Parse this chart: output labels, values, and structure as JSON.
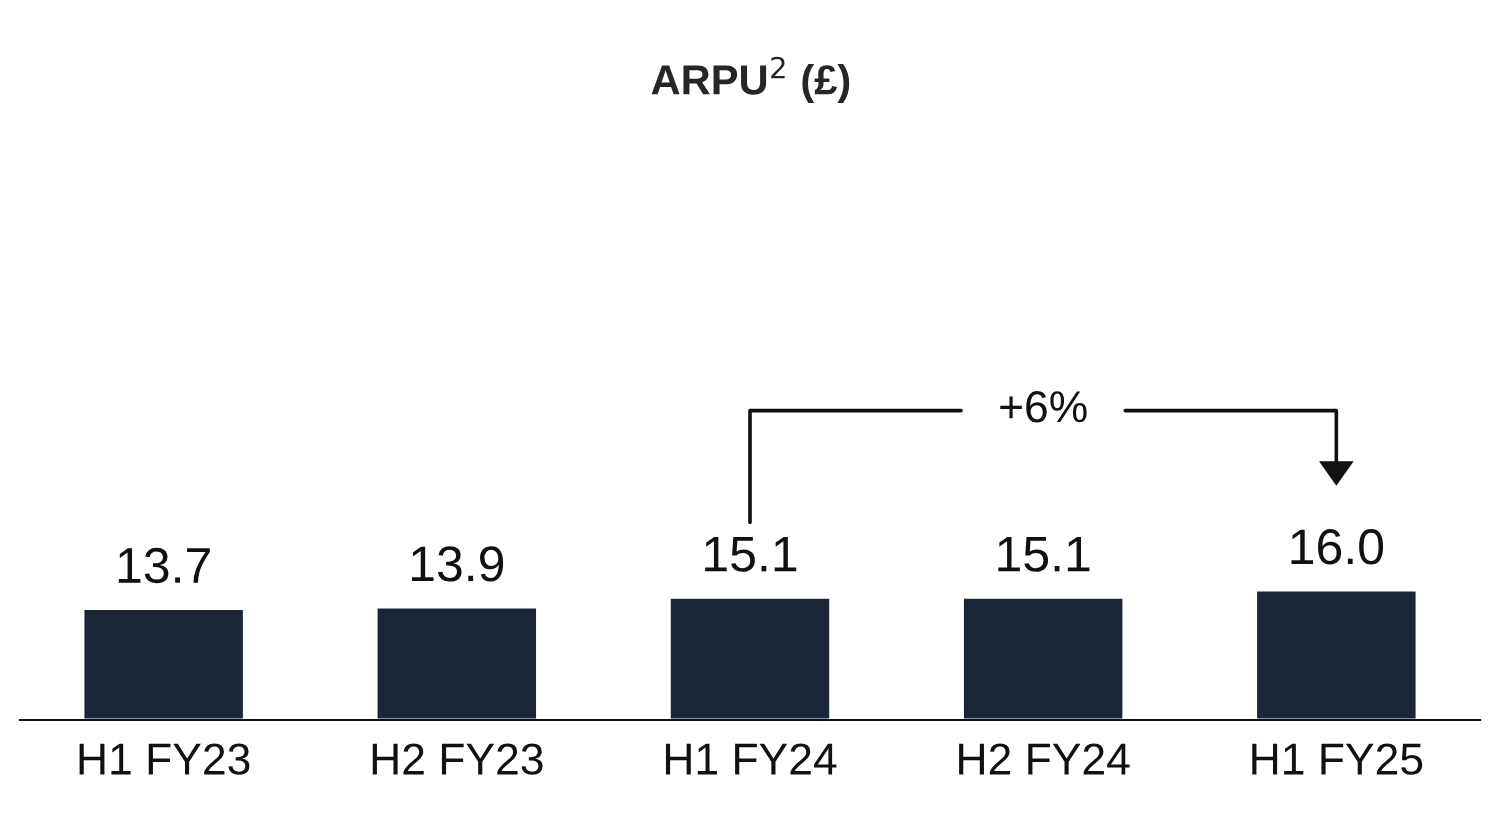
{
  "chart_data": {
    "type": "bar",
    "title": "ARPU$^{2}$ (£)",
    "categories": [
      "H1 FY23",
      "H2 FY23",
      "H1 FY24",
      "H2 FY24",
      "H1 FY25"
    ],
    "values": [
      13.7,
      13.9,
      15.1,
      15.1,
      16.0
    ],
    "color": "#1b2538",
    "value_labels": [
      "13.7",
      "13.9",
      "15.1",
      "15.1",
      "16.0"
    ],
    "annotations": [
      "+6%"
    ]
  }
}
